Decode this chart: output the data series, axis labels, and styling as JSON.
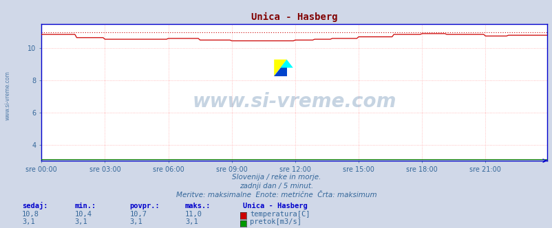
{
  "title": "Unica - Hasberg",
  "title_color": "#800000",
  "background_color": "#d0d8e8",
  "plot_bg_color": "#ffffff",
  "grid_color": "#ffaaaa",
  "grid_style": "dotted",
  "axis_color": "#0000cc",
  "tick_color": "#336699",
  "watermark": "www.si-vreme.com",
  "watermark_color": "#336699",
  "sidewater_color": "#336699",
  "subtitle_lines": [
    "Slovenija / reke in morje.",
    "zadnji dan / 5 minut.",
    "Meritve: maksimalne  Enote: metrične  Črta: maksimum"
  ],
  "x_tick_labels": [
    "sre 00:00",
    "sre 03:00",
    "sre 06:00",
    "sre 09:00",
    "sre 12:00",
    "sre 15:00",
    "sre 18:00",
    "sre 21:00"
  ],
  "x_tick_positions": [
    0,
    36,
    72,
    108,
    144,
    180,
    216,
    252
  ],
  "n_points": 288,
  "ylim_min": 3.0,
  "ylim_max": 11.5,
  "yticks": [
    4,
    6,
    8,
    10
  ],
  "temp_color": "#cc0000",
  "flow_color": "#007700",
  "temp_min": 10.4,
  "temp_max": 11.0,
  "temp_avg": 10.7,
  "temp_current": 10.8,
  "flow_min": 3.1,
  "flow_max": 3.1,
  "flow_avg": 3.1,
  "flow_current": 3.1,
  "table_headers": [
    "sedaj:",
    "min.:",
    "povpr.:",
    "maks.:"
  ],
  "table_header_color": "#0000cc",
  "table_value_color": "#336699",
  "legend_title": "Unica - Hasberg",
  "legend_title_color": "#0000cc",
  "legend_entries": [
    "temperatura[C]",
    "pretok[m3/s]"
  ],
  "legend_colors": [
    "#cc0000",
    "#009900"
  ],
  "fig_width": 8.03,
  "fig_height": 3.32,
  "dpi": 100
}
